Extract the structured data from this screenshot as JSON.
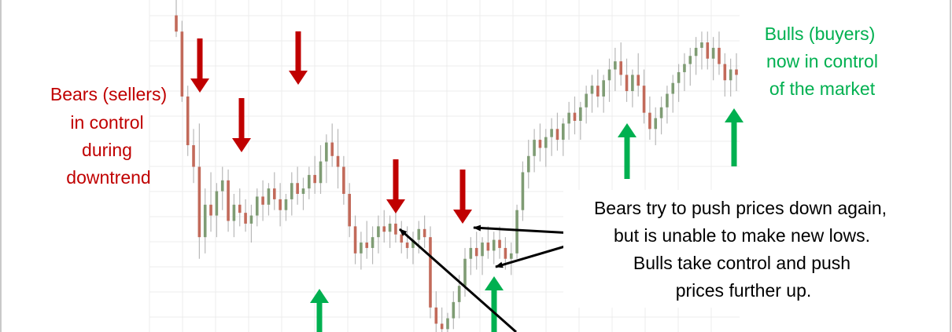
{
  "chart_data": {
    "type": "candlestick",
    "xlabel": "",
    "ylabel": "",
    "grid": true,
    "legend": "none",
    "colors": {
      "up": "#7f9c74",
      "down": "#c26a5a",
      "bear_arrow": "#c00000",
      "bull_arrow": "#00b050",
      "pointer": "#000000",
      "grid": "#ececec"
    },
    "candles": [
      {
        "o": 92,
        "h": 98,
        "l": 84,
        "c": 86
      },
      {
        "o": 86,
        "h": 90,
        "l": 60,
        "c": 62
      },
      {
        "o": 62,
        "h": 66,
        "l": 40,
        "c": 44
      },
      {
        "o": 44,
        "h": 50,
        "l": 30,
        "c": 36
      },
      {
        "o": 36,
        "h": 52,
        "l": 2,
        "c": 10
      },
      {
        "o": 10,
        "h": 28,
        "l": 4,
        "c": 22
      },
      {
        "o": 22,
        "h": 34,
        "l": 12,
        "c": 18
      },
      {
        "o": 18,
        "h": 30,
        "l": 10,
        "c": 27
      },
      {
        "o": 27,
        "h": 36,
        "l": 20,
        "c": 31
      },
      {
        "o": 31,
        "h": 35,
        "l": 12,
        "c": 16
      },
      {
        "o": 16,
        "h": 26,
        "l": 10,
        "c": 22
      },
      {
        "o": 22,
        "h": 28,
        "l": 14,
        "c": 19
      },
      {
        "o": 19,
        "h": 24,
        "l": 12,
        "c": 15
      },
      {
        "o": 15,
        "h": 22,
        "l": 8,
        "c": 18
      },
      {
        "o": 18,
        "h": 28,
        "l": 14,
        "c": 25
      },
      {
        "o": 25,
        "h": 31,
        "l": 16,
        "c": 22
      },
      {
        "o": 22,
        "h": 30,
        "l": 18,
        "c": 28
      },
      {
        "o": 28,
        "h": 34,
        "l": 20,
        "c": 24
      },
      {
        "o": 24,
        "h": 30,
        "l": 14,
        "c": 20
      },
      {
        "o": 20,
        "h": 26,
        "l": 16,
        "c": 24
      },
      {
        "o": 24,
        "h": 34,
        "l": 18,
        "c": 30
      },
      {
        "o": 30,
        "h": 36,
        "l": 22,
        "c": 26
      },
      {
        "o": 26,
        "h": 32,
        "l": 20,
        "c": 28
      },
      {
        "o": 28,
        "h": 36,
        "l": 24,
        "c": 33
      },
      {
        "o": 33,
        "h": 40,
        "l": 26,
        "c": 30
      },
      {
        "o": 30,
        "h": 44,
        "l": 26,
        "c": 38
      },
      {
        "o": 38,
        "h": 48,
        "l": 30,
        "c": 45
      },
      {
        "o": 45,
        "h": 52,
        "l": 36,
        "c": 40
      },
      {
        "o": 40,
        "h": 50,
        "l": 28,
        "c": 36
      },
      {
        "o": 36,
        "h": 40,
        "l": 22,
        "c": 26
      },
      {
        "o": 26,
        "h": 30,
        "l": 10,
        "c": 14
      },
      {
        "o": 14,
        "h": 18,
        "l": 0,
        "c": 4
      },
      {
        "o": 4,
        "h": 12,
        "l": -2,
        "c": 8
      },
      {
        "o": 8,
        "h": 16,
        "l": 2,
        "c": 6
      },
      {
        "o": 6,
        "h": 14,
        "l": 0,
        "c": 10
      },
      {
        "o": 10,
        "h": 18,
        "l": 4,
        "c": 14
      },
      {
        "o": 14,
        "h": 20,
        "l": 8,
        "c": 12
      },
      {
        "o": 12,
        "h": 18,
        "l": 6,
        "c": 15
      },
      {
        "o": 15,
        "h": 20,
        "l": 8,
        "c": 11
      },
      {
        "o": 11,
        "h": 16,
        "l": 4,
        "c": 8
      },
      {
        "o": 8,
        "h": 14,
        "l": 2,
        "c": 6
      },
      {
        "o": 6,
        "h": 12,
        "l": 0,
        "c": 9
      },
      {
        "o": 9,
        "h": 16,
        "l": 4,
        "c": 13
      },
      {
        "o": 13,
        "h": 18,
        "l": 6,
        "c": 10
      },
      {
        "o": 10,
        "h": 14,
        "l": -20,
        "c": -16
      },
      {
        "o": -16,
        "h": -10,
        "l": -26,
        "c": -22
      },
      {
        "o": -22,
        "h": -16,
        "l": -28,
        "c": -24
      },
      {
        "o": -24,
        "h": -18,
        "l": -28,
        "c": -20
      },
      {
        "o": -20,
        "h": -10,
        "l": -24,
        "c": -14
      },
      {
        "o": -14,
        "h": -4,
        "l": -20,
        "c": -8
      },
      {
        "o": -8,
        "h": 6,
        "l": -12,
        "c": 2
      },
      {
        "o": 2,
        "h": 10,
        "l": -4,
        "c": 6
      },
      {
        "o": 6,
        "h": 12,
        "l": -2,
        "c": 3
      },
      {
        "o": 3,
        "h": 10,
        "l": -4,
        "c": 8
      },
      {
        "o": 8,
        "h": 14,
        "l": 2,
        "c": 5
      },
      {
        "o": 5,
        "h": 12,
        "l": 0,
        "c": 9
      },
      {
        "o": 9,
        "h": 14,
        "l": 2,
        "c": 6
      },
      {
        "o": 6,
        "h": 10,
        "l": -2,
        "c": 2
      },
      {
        "o": 2,
        "h": 8,
        "l": -4,
        "c": 4
      },
      {
        "o": 4,
        "h": 22,
        "l": 2,
        "c": 20
      },
      {
        "o": 20,
        "h": 38,
        "l": 16,
        "c": 34
      },
      {
        "o": 34,
        "h": 46,
        "l": 28,
        "c": 40
      },
      {
        "o": 40,
        "h": 50,
        "l": 34,
        "c": 46
      },
      {
        "o": 46,
        "h": 52,
        "l": 38,
        "c": 43
      },
      {
        "o": 43,
        "h": 50,
        "l": 36,
        "c": 47
      },
      {
        "o": 47,
        "h": 54,
        "l": 40,
        "c": 50
      },
      {
        "o": 50,
        "h": 56,
        "l": 42,
        "c": 46
      },
      {
        "o": 46,
        "h": 54,
        "l": 40,
        "c": 52
      },
      {
        "o": 52,
        "h": 60,
        "l": 46,
        "c": 56
      },
      {
        "o": 56,
        "h": 62,
        "l": 48,
        "c": 53
      },
      {
        "o": 53,
        "h": 60,
        "l": 46,
        "c": 58
      },
      {
        "o": 58,
        "h": 66,
        "l": 52,
        "c": 63
      },
      {
        "o": 63,
        "h": 70,
        "l": 56,
        "c": 66
      },
      {
        "o": 66,
        "h": 72,
        "l": 58,
        "c": 62
      },
      {
        "o": 62,
        "h": 70,
        "l": 56,
        "c": 68
      },
      {
        "o": 68,
        "h": 76,
        "l": 60,
        "c": 72
      },
      {
        "o": 72,
        "h": 80,
        "l": 64,
        "c": 75
      },
      {
        "o": 75,
        "h": 82,
        "l": 66,
        "c": 70
      },
      {
        "o": 70,
        "h": 76,
        "l": 60,
        "c": 64
      },
      {
        "o": 64,
        "h": 72,
        "l": 58,
        "c": 70
      },
      {
        "o": 70,
        "h": 78,
        "l": 62,
        "c": 66
      },
      {
        "o": 66,
        "h": 72,
        "l": 52,
        "c": 56
      },
      {
        "o": 56,
        "h": 62,
        "l": 46,
        "c": 50
      },
      {
        "o": 50,
        "h": 58,
        "l": 44,
        "c": 54
      },
      {
        "o": 54,
        "h": 62,
        "l": 48,
        "c": 58
      },
      {
        "o": 58,
        "h": 66,
        "l": 52,
        "c": 63
      },
      {
        "o": 63,
        "h": 70,
        "l": 56,
        "c": 67
      },
      {
        "o": 67,
        "h": 74,
        "l": 60,
        "c": 71
      },
      {
        "o": 71,
        "h": 78,
        "l": 64,
        "c": 74
      },
      {
        "o": 74,
        "h": 80,
        "l": 66,
        "c": 77
      },
      {
        "o": 77,
        "h": 84,
        "l": 70,
        "c": 80
      },
      {
        "o": 80,
        "h": 86,
        "l": 72,
        "c": 82
      },
      {
        "o": 82,
        "h": 86,
        "l": 72,
        "c": 76
      },
      {
        "o": 76,
        "h": 84,
        "l": 68,
        "c": 80
      },
      {
        "o": 80,
        "h": 86,
        "l": 70,
        "c": 74
      },
      {
        "o": 74,
        "h": 78,
        "l": 62,
        "c": 68
      },
      {
        "o": 68,
        "h": 76,
        "l": 62,
        "c": 72
      },
      {
        "o": 72,
        "h": 78,
        "l": 64,
        "c": 70
      }
    ]
  },
  "annotations": {
    "bears_text": [
      "Bears (sellers)",
      "in control",
      "during",
      "downtrend"
    ],
    "bulls_text": [
      "Bulls (buyers)",
      "now in control",
      "of the market"
    ],
    "middle_text": [
      "Bears try to push prices down again,",
      "but is unable to make new lows.",
      "Bulls take control and push",
      "prices further up."
    ]
  }
}
